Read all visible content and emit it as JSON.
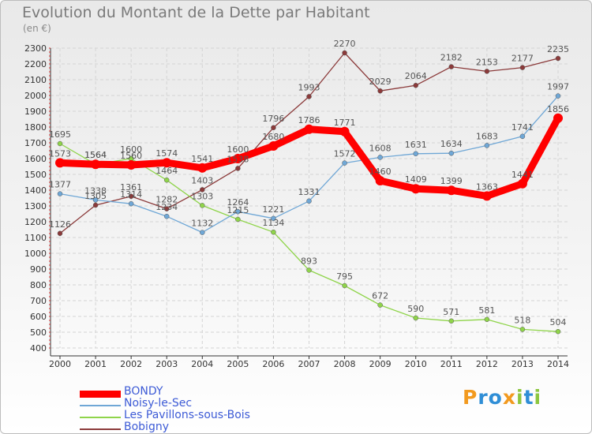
{
  "chart_data": {
    "type": "line",
    "title": "Evolution du Montant de la Dette par Habitant",
    "subtitle": "(en €)",
    "x": [
      "2000",
      "2001",
      "2002",
      "2003",
      "2004",
      "2005",
      "2006",
      "2007",
      "2008",
      "2009",
      "2010",
      "2011",
      "2012",
      "2013",
      "2014"
    ],
    "ylim": [
      400,
      2300
    ],
    "yticks": [
      400,
      500,
      600,
      700,
      800,
      900,
      1000,
      1100,
      1200,
      1300,
      1400,
      1500,
      1600,
      1700,
      1800,
      1900,
      2000,
      2100,
      2200,
      2300
    ],
    "grid": true,
    "legend_position": "bottom-left",
    "series": [
      {
        "name": "BONDY",
        "color": "#ff0000",
        "values": [
          1573,
          1564,
          1560,
          1574,
          1541,
          1600,
          1680,
          1786,
          1771,
          1460,
          1409,
          1399,
          1363,
          1441,
          1856
        ]
      },
      {
        "name": "Noisy-le-Sec",
        "color": "#6fa7d6",
        "values": [
          1377,
          1338,
          1314,
          1234,
          1132,
          1264,
          1221,
          1331,
          1572,
          1608,
          1631,
          1634,
          1683,
          1741,
          1997
        ]
      },
      {
        "name": "Les Pavillons-sous-Bois",
        "color": "#8fd44a",
        "values": [
          1695,
          1564,
          1600,
          1464,
          1303,
          1215,
          1134,
          893,
          795,
          672,
          590,
          571,
          581,
          518,
          504
        ]
      },
      {
        "name": "Bobigny",
        "color": "#8b3a3a",
        "values": [
          1126,
          1305,
          1361,
          1282,
          1403,
          1538,
          1796,
          1993,
          2270,
          2029,
          2064,
          2182,
          2153,
          2177,
          2235
        ]
      }
    ]
  },
  "logo": {
    "text": "Proxiti",
    "letters": [
      "P",
      "r",
      "o",
      "x",
      "i",
      "t",
      "i"
    ],
    "colors": [
      "#f29a1f",
      "#2f8ed6",
      "#2f8ed6",
      "#f29a1f",
      "#8cc63f",
      "#2f8ed6",
      "#8cc63f"
    ]
  }
}
